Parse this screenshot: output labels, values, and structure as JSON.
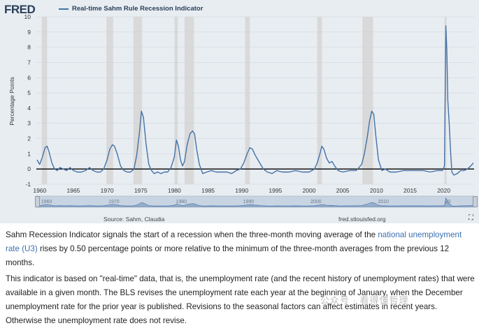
{
  "header": {
    "logo": "FRED",
    "legend_label": "Real-time Sahm Rule Recession Indicator"
  },
  "footer": {
    "source": "Source: Sahm, Claudia",
    "site": "fred.stlouisfed.org"
  },
  "notes": {
    "p1_before": "Sahm Recession Indicator signals the start of a recession when the three-month moving average of the ",
    "p1_link": "national unemployment rate (U3)",
    "p1_after": " rises by 0.50 percentage points or more relative to the minimum of the three-month averages from the previous 12 months.",
    "p2": "This indicator is based on \"real-time\" data, that is, the unemployment rate (and the recent history of unemployment rates) that were available in a given month. The BLS revises the unemployment rate each year at the beginning of January, when the December unemployment rate for the prior year is published. Revisions to the seasonal factors can affect estimates in recent years. Otherwise the unemployment rate does not revise."
  },
  "watermark": "公众号 · 看得懂哲理",
  "colors": {
    "series": "#4572a7",
    "recession_band": "#d9d9d9",
    "background": "#e8edf2",
    "grid": "#cdd5de"
  },
  "chart_data": {
    "type": "line",
    "title": "Real-time Sahm Rule Recession Indicator",
    "xlabel": "",
    "ylabel": "Percentage Points",
    "xlim": [
      1959.5,
      2024.5
    ],
    "ylim": [
      -1,
      10
    ],
    "yticks": [
      -1,
      0,
      1,
      2,
      3,
      4,
      5,
      6,
      7,
      8,
      9,
      10
    ],
    "xticks": [
      1960,
      1965,
      1970,
      1975,
      1980,
      1985,
      1990,
      1995,
      2000,
      2005,
      2010,
      2015,
      2020
    ],
    "navigator_labels": [
      "1960",
      "1970",
      "1980",
      "1990",
      "2000",
      "2010",
      "20"
    ],
    "grid": true,
    "legend": "top-left",
    "recessions": [
      [
        1960.3,
        1961.1
      ],
      [
        1969.9,
        1970.9
      ],
      [
        1973.9,
        1975.2
      ],
      [
        1980.0,
        1980.5
      ],
      [
        1981.5,
        1982.9
      ],
      [
        1990.5,
        1991.2
      ],
      [
        2001.2,
        2001.9
      ],
      [
        2007.9,
        2009.5
      ],
      [
        2020.1,
        2020.4
      ]
    ],
    "series": [
      {
        "name": "Real-time Sahm Rule Recession Indicator",
        "x": [
          1959.6,
          1960.0,
          1960.4,
          1960.8,
          1961.1,
          1961.4,
          1961.8,
          1962.2,
          1962.6,
          1963.0,
          1963.5,
          1964.0,
          1964.5,
          1965.0,
          1965.6,
          1966.2,
          1966.8,
          1967.4,
          1967.9,
          1968.5,
          1969.0,
          1969.5,
          1970.0,
          1970.4,
          1970.8,
          1971.1,
          1971.5,
          1972.0,
          1972.5,
          1973.0,
          1973.5,
          1974.0,
          1974.4,
          1974.8,
          1975.1,
          1975.4,
          1975.8,
          1976.2,
          1976.6,
          1977.0,
          1977.5,
          1978.0,
          1978.5,
          1979.0,
          1979.5,
          1980.0,
          1980.3,
          1980.6,
          1980.9,
          1981.2,
          1981.5,
          1981.9,
          1982.3,
          1982.7,
          1983.0,
          1983.3,
          1983.7,
          1984.2,
          1984.8,
          1985.5,
          1986.2,
          1987.0,
          1987.8,
          1988.5,
          1989.2,
          1989.8,
          1990.3,
          1990.8,
          1991.2,
          1991.6,
          1992.0,
          1992.4,
          1992.8,
          1993.2,
          1993.8,
          1994.5,
          1995.2,
          1996.0,
          1997.0,
          1998.0,
          1999.0,
          2000.0,
          2000.8,
          2001.2,
          2001.6,
          2001.9,
          2002.2,
          2002.6,
          2003.0,
          2003.4,
          2003.8,
          2004.3,
          2005.0,
          2006.0,
          2007.0,
          2007.8,
          2008.2,
          2008.6,
          2009.0,
          2009.3,
          2009.6,
          2009.9,
          2010.3,
          2010.8,
          2011.3,
          2012.0,
          2013.0,
          2014.0,
          2015.0,
          2016.0,
          2017.0,
          2018.0,
          2019.0,
          2019.8,
          2020.1,
          2020.3,
          2020.45,
          2020.6,
          2020.8,
          2021.0,
          2021.2,
          2021.5,
          2022.0,
          2022.5,
          2023.0,
          2023.5,
          2024.0,
          2024.4
        ],
        "values": [
          0.6,
          0.3,
          0.8,
          1.4,
          1.5,
          1.1,
          0.4,
          0.0,
          -0.1,
          0.1,
          0.0,
          -0.1,
          0.1,
          -0.1,
          -0.2,
          -0.2,
          -0.1,
          0.1,
          -0.1,
          -0.2,
          -0.2,
          0.0,
          0.6,
          1.3,
          1.6,
          1.5,
          1.0,
          0.2,
          -0.1,
          -0.2,
          -0.2,
          0.0,
          0.9,
          2.4,
          3.8,
          3.4,
          1.6,
          0.3,
          -0.1,
          -0.3,
          -0.2,
          -0.3,
          -0.2,
          -0.2,
          0.1,
          0.8,
          1.9,
          1.5,
          0.6,
          0.2,
          0.5,
          1.6,
          2.3,
          2.5,
          2.3,
          1.3,
          0.3,
          -0.3,
          -0.2,
          -0.1,
          -0.2,
          -0.2,
          -0.2,
          -0.3,
          -0.1,
          0.0,
          0.4,
          1.0,
          1.4,
          1.3,
          0.9,
          0.6,
          0.3,
          0.0,
          -0.2,
          -0.3,
          -0.1,
          -0.2,
          -0.2,
          -0.1,
          -0.2,
          -0.2,
          0.0,
          0.4,
          1.0,
          1.5,
          1.3,
          0.7,
          0.4,
          0.5,
          0.2,
          -0.1,
          -0.2,
          -0.1,
          -0.1,
          0.3,
          1.0,
          2.0,
          3.2,
          3.8,
          3.6,
          2.2,
          0.6,
          -0.1,
          0.0,
          -0.2,
          -0.2,
          -0.1,
          -0.1,
          -0.1,
          -0.1,
          -0.2,
          -0.1,
          -0.1,
          0.2,
          9.4,
          7.8,
          4.5,
          3.0,
          1.2,
          -0.2,
          -0.4,
          -0.3,
          -0.1,
          -0.1,
          0.0,
          0.2,
          0.4
        ]
      }
    ]
  }
}
